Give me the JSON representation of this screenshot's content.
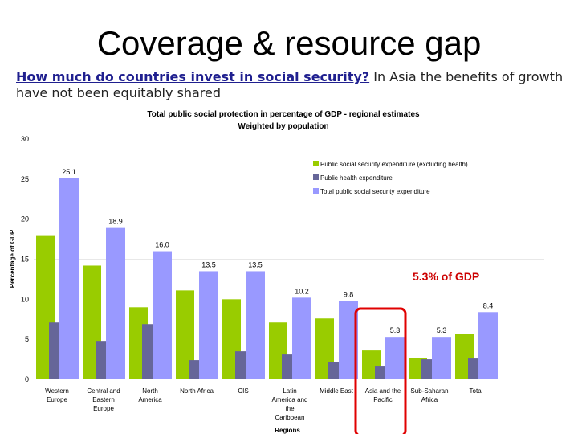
{
  "slide": {
    "title": "Coverage & resource gap",
    "question": "How much do countries invest in social security?",
    "statement": " In Asia the benefits of growth have not been equitably shared"
  },
  "colors": {
    "social_security": "#99cc00",
    "health": "#666699",
    "total": "#9999ff",
    "highlight": "#e00000",
    "callout": "#cc0000"
  },
  "chart_data": {
    "type": "bar",
    "title": "Total public social protection in percentage of GDP - regional estimates",
    "subtitle": "Weighted by population",
    "xlabel": "Regions",
    "ylabel": "Percentage of GDP",
    "ylim": [
      0,
      30
    ],
    "yticks": [
      0,
      5,
      10,
      15,
      20,
      25,
      30
    ],
    "grid": false,
    "legend_position": "top-right",
    "categories": [
      "Western Europe",
      "Central and Eastern Europe",
      "North America",
      "North Africa",
      "CIS",
      "Latin America and the Caribbean",
      "Middle East",
      "Asia and the Pacific",
      "Sub-Saharan Africa",
      "Total"
    ],
    "series": [
      {
        "name": "Public social security expenditure (excluding health)",
        "color_key": "social_security",
        "values": [
          17.9,
          14.2,
          9.0,
          11.1,
          10.0,
          7.1,
          7.6,
          3.6,
          2.7,
          5.7
        ]
      },
      {
        "name": "Public health expenditure",
        "color_key": "health",
        "values": [
          7.1,
          4.8,
          6.9,
          2.4,
          3.5,
          3.1,
          2.2,
          1.6,
          2.5,
          2.6
        ]
      },
      {
        "name": "Total public social security expenditure",
        "color_key": "total",
        "values": [
          25.1,
          18.9,
          16.0,
          13.5,
          13.5,
          10.2,
          9.8,
          5.3,
          5.3,
          8.4
        ],
        "labels": [
          "25.1",
          "18.9",
          "16.0",
          "13.5",
          "13.5",
          "10.2",
          "9.8",
          "5.3",
          "5.3",
          "8.4"
        ]
      }
    ],
    "highlight_category": "Asia and the Pacific",
    "annotation": "5.3% of GDP"
  }
}
